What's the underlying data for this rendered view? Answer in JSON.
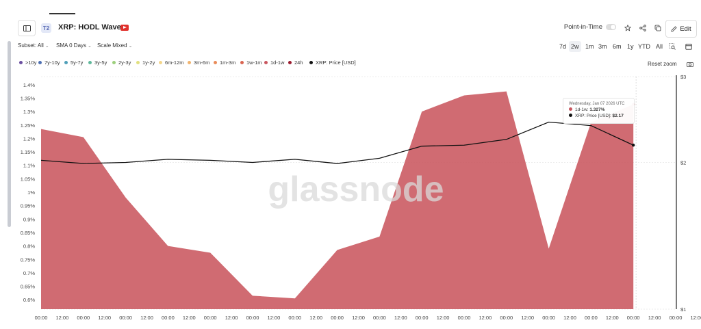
{
  "header": {
    "tier_badge": "T2",
    "title": "XRP: HODL Waves",
    "point_in_time_label": "Point-in-Time",
    "edit_label": "Edit"
  },
  "controls": {
    "subset": "Subset: All",
    "sma": "SMA 0 Days",
    "scale": "Scale Mixed"
  },
  "ranges": [
    "7d",
    "2w",
    "1m",
    "3m",
    "6m",
    "1y",
    "YTD",
    "All"
  ],
  "active_range": "2w",
  "legend": [
    {
      "label": ">10y",
      "color": "#6b4fa0"
    },
    {
      "label": "7y-10y",
      "color": "#4d6fb3"
    },
    {
      "label": "5y-7y",
      "color": "#4f9fb8"
    },
    {
      "label": "3y-5y",
      "color": "#5fb89b"
    },
    {
      "label": "2y-3y",
      "color": "#9ccf7c"
    },
    {
      "label": "1y-2y",
      "color": "#e1e07e"
    },
    {
      "label": "6m-12m",
      "color": "#f3d58a"
    },
    {
      "label": "3m-6m",
      "color": "#f0b36e"
    },
    {
      "label": "1m-3m",
      "color": "#e98c5a"
    },
    {
      "label": "1w-1m",
      "color": "#d96450"
    },
    {
      "label": "1d-1w",
      "color": "#c9565f"
    },
    {
      "label": "24h",
      "color": "#9a1b2e"
    },
    {
      "label": "XRP: Price [USD]",
      "color": "#111111"
    }
  ],
  "reset_zoom_label": "Reset zoom",
  "watermark": "glassnode",
  "tooltip": {
    "date": "Wednesday, Jan 07 2026 UTC",
    "series1_label": "1d-1w:",
    "series1_value": "1.327%",
    "series1_color": "#c9565f",
    "series2_label": "XRP: Price [USD]:",
    "series2_value": "$2.17",
    "series2_color": "#111111"
  },
  "chart_data": {
    "type": "area",
    "x_ticks": [
      "00:00",
      "12:00",
      "00:00",
      "12:00",
      "00:00",
      "12:00",
      "00:00",
      "12:00",
      "00:00",
      "12:00",
      "00:00",
      "12:00",
      "00:00",
      "12:00",
      "00:00",
      "12:00",
      "00:00",
      "12:00",
      "00:00",
      "12:00",
      "00:00",
      "12:00",
      "00:00",
      "12:00",
      "00:00",
      "12:00",
      "00:00",
      "12:00",
      "00:00",
      "12:00",
      "00:00",
      "12:00"
    ],
    "x_tick_indices": [
      0,
      1,
      2,
      3,
      4,
      5,
      6,
      7,
      8,
      9,
      10,
      11,
      12,
      13,
      14,
      15,
      16,
      17,
      18,
      19,
      20,
      21,
      22,
      23,
      24,
      25,
      26,
      27,
      28,
      29,
      30,
      31
    ],
    "y_left_ticks": [
      "0.6%",
      "0.65%",
      "0.7%",
      "0.75%",
      "0.8%",
      "0.85%",
      "0.9%",
      "0.95%",
      "1%",
      "1.05%",
      "1.1%",
      "1.15%",
      "1.2%",
      "1.25%",
      "1.3%",
      "1.35%",
      "1.4%"
    ],
    "y_left_range": [
      0.565,
      1.43
    ],
    "y_right_ticks": [
      "$1",
      "$2",
      "$3"
    ],
    "y_right_range": [
      1,
      3
    ],
    "y_right_scale": "log",
    "series": [
      {
        "name": "1d-1w",
        "color": "#c9565f",
        "x": [
          0,
          2,
          4,
          6,
          8,
          10,
          12,
          14,
          16,
          18,
          20,
          22,
          24,
          26,
          28
        ],
        "values": [
          1.235,
          1.205,
          0.98,
          0.8,
          0.775,
          0.615,
          0.605,
          0.785,
          0.835,
          1.3,
          1.36,
          1.375,
          0.79,
          1.26,
          1.327
        ]
      },
      {
        "name": "XRP: Price [USD]",
        "color": "#111111",
        "x": [
          0,
          2,
          4,
          6,
          8,
          10,
          12,
          14,
          16,
          18,
          20,
          22,
          24,
          26,
          28
        ],
        "values": [
          2.02,
          1.99,
          2.0,
          2.03,
          2.02,
          2.0,
          2.03,
          1.99,
          2.04,
          2.16,
          2.17,
          2.23,
          2.42,
          2.38,
          2.17
        ]
      }
    ]
  }
}
